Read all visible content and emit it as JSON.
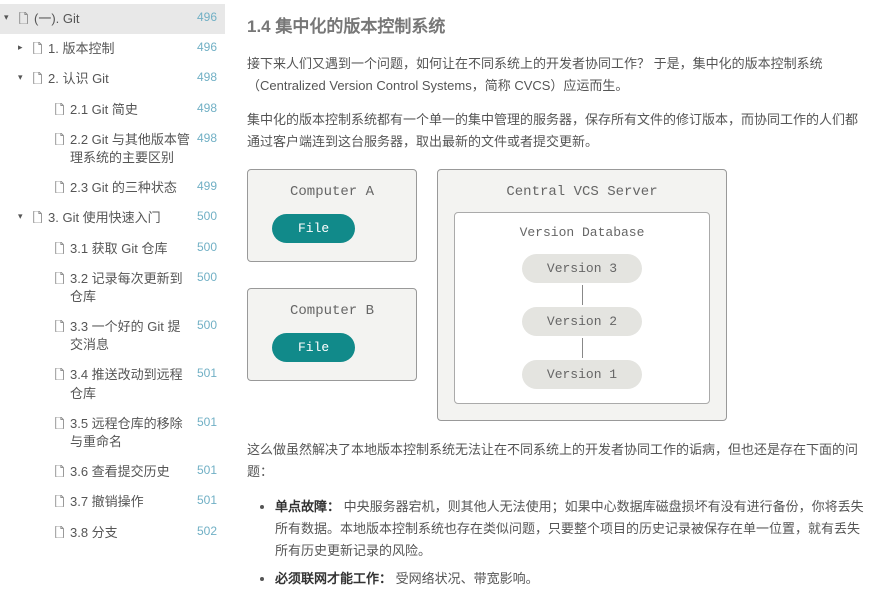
{
  "sidebar": {
    "items": [
      {
        "label": "(一). Git",
        "page": "496",
        "level": 0,
        "arrow": "down",
        "active": true
      },
      {
        "label": "1. 版本控制",
        "page": "496",
        "level": 1,
        "arrow": "right"
      },
      {
        "label": "2. 认识 Git",
        "page": "498",
        "level": 1,
        "arrow": "down"
      },
      {
        "label": "2.1 Git 简史",
        "page": "498",
        "level": 2
      },
      {
        "label": "2.2 Git 与其他版本管理系统的主要区别",
        "page": "498",
        "level": 2
      },
      {
        "label": "2.3 Git 的三种状态",
        "page": "499",
        "level": 2
      },
      {
        "label": "3. Git 使用快速入门",
        "page": "500",
        "level": 1,
        "arrow": "down"
      },
      {
        "label": "3.1 获取 Git 仓库",
        "page": "500",
        "level": 2
      },
      {
        "label": "3.2 记录每次更新到仓库",
        "page": "500",
        "level": 2
      },
      {
        "label": "3.3 一个好的 Git 提交消息",
        "page": "500",
        "level": 2
      },
      {
        "label": "3.4 推送改动到远程仓库",
        "page": "501",
        "level": 2
      },
      {
        "label": "3.5 远程仓库的移除与重命名",
        "page": "501",
        "level": 2
      },
      {
        "label": "3.6 查看提交历史",
        "page": "501",
        "level": 2
      },
      {
        "label": "3.7 撤销操作",
        "page": "501",
        "level": 2
      },
      {
        "label": "3.8 分支",
        "page": "502",
        "level": 2
      }
    ]
  },
  "article": {
    "heading": "1.4 集中化的版本控制系统",
    "p1": "接下来人们又遇到一个问题，如何让在不同系统上的开发者协同工作？ 于是，集中化的版本控制系统（Centralized Version Control Systems，简称 CVCS）应运而生。",
    "p2": "集中化的版本控制系统都有一个单一的集中管理的服务器，保存所有文件的修订版本，而协同工作的人们都通过客户端连到这台服务器，取出最新的文件或者提交更新。",
    "p3": "这么做虽然解决了本地版本控制系统无法让在不同系统上的开发者协同工作的诟病，但也还是存在下面的问题：",
    "bullets": [
      {
        "strong": "单点故障：",
        "text": " 中央服务器宕机，则其他人无法使用；如果中心数据库磁盘损坏有没有进行备份，你将丢失所有数据。本地版本控制系统也存在类似问题，只要整个项目的历史记录被保存在单一位置，就有丢失所有历史更新记录的风险。"
      },
      {
        "strong": "必须联网才能工作：",
        "text": " 受网络状况、带宽影响。"
      }
    ]
  },
  "diagram": {
    "computerA": "Computer A",
    "computerB": "Computer B",
    "file": "File",
    "server": "Central VCS Server",
    "db": "Version Database",
    "v3": "Version 3",
    "v2": "Version 2",
    "v1": "Version 1",
    "colors": {
      "pill": "#118a8a",
      "box_bg": "#f3f3f1",
      "version_bg": "#e4e4e0"
    }
  }
}
